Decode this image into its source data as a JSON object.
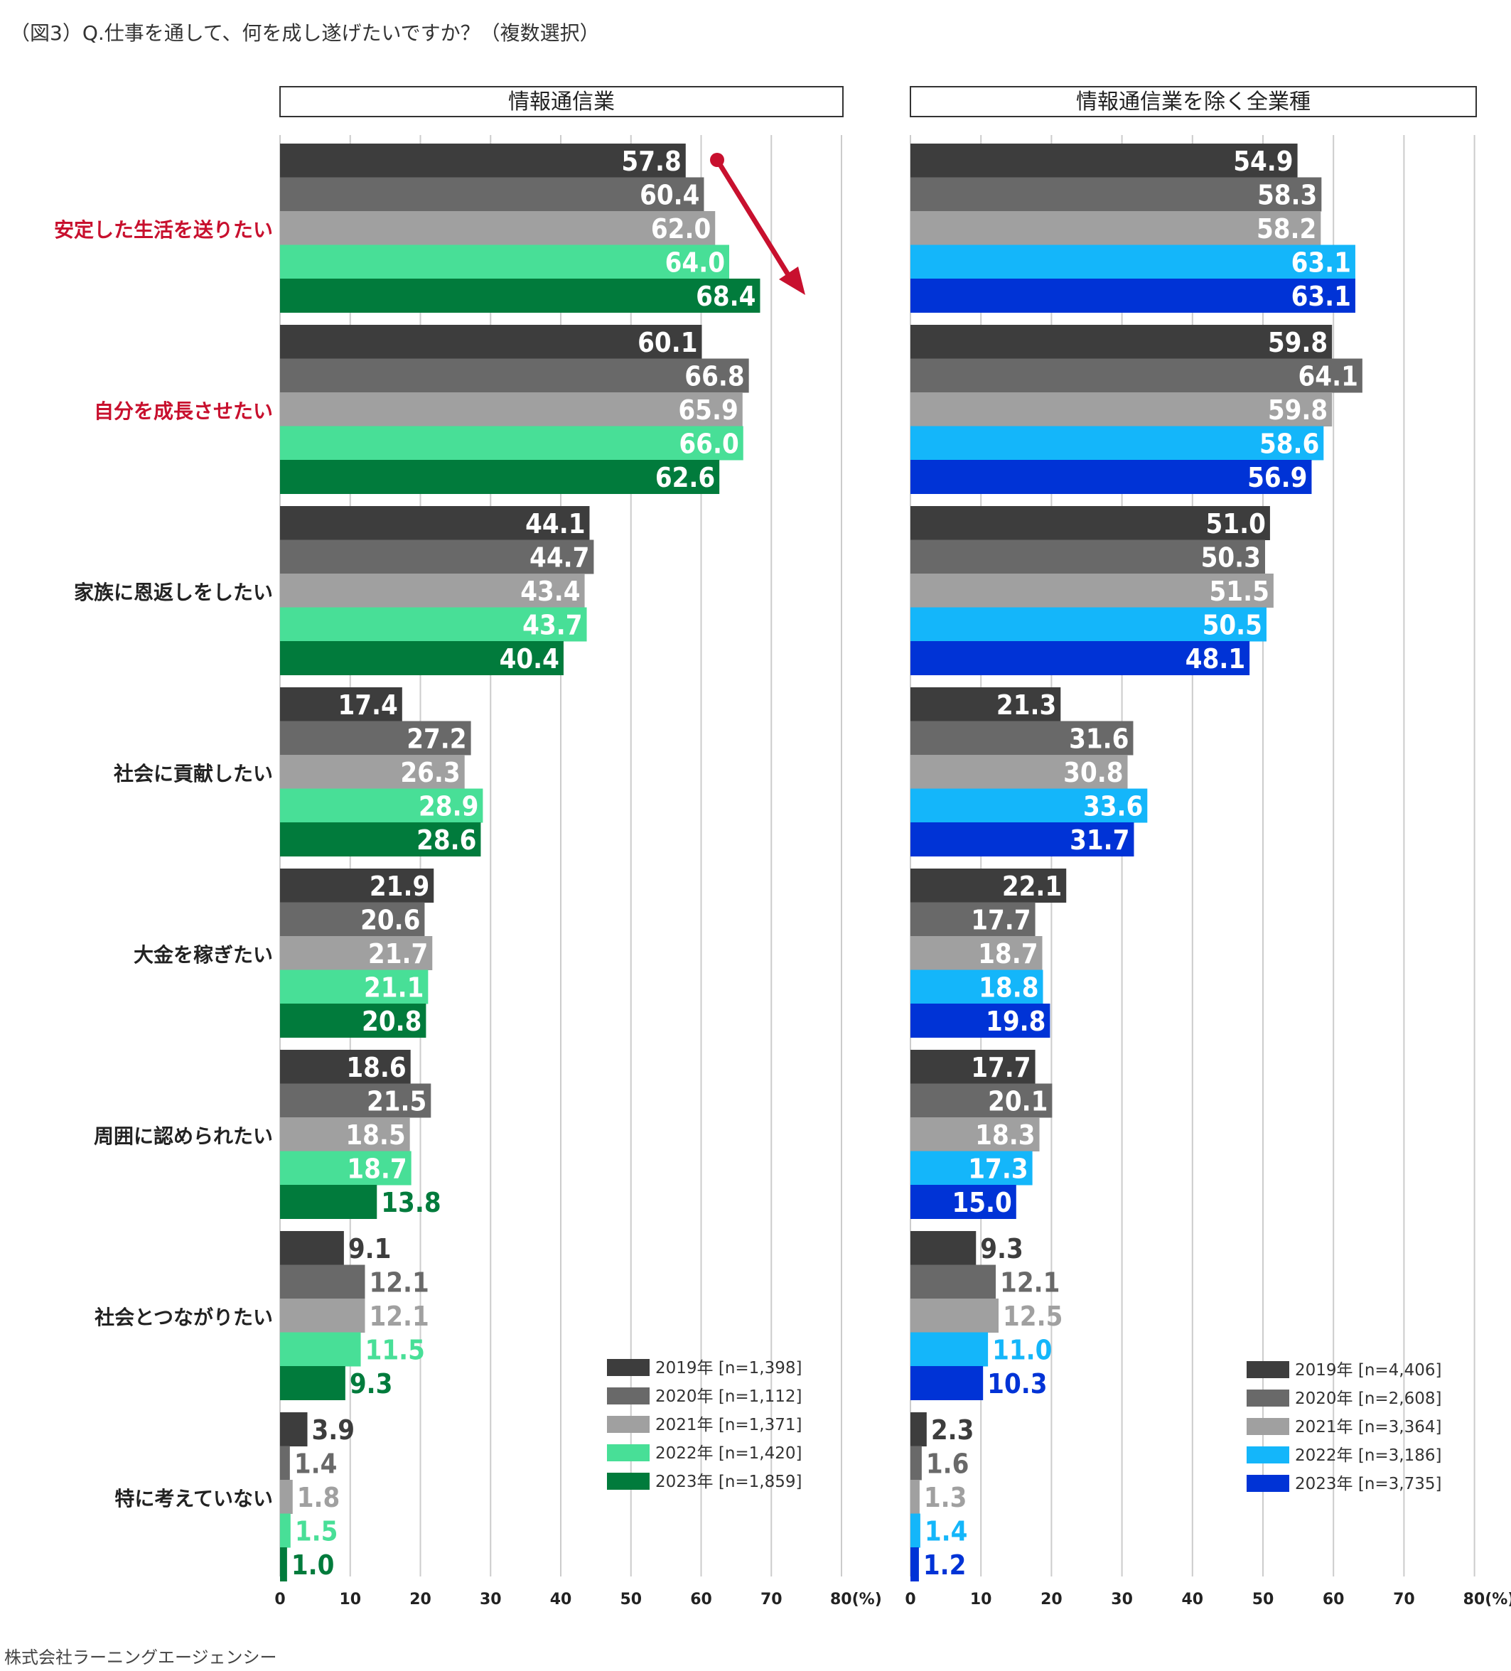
{
  "figure_title": "（図3）Q.仕事を通して、何を成し遂げたいですか？（複数選択）",
  "footer": "株式会社ラーニングエージェンシー",
  "colors": {
    "text": "#222222",
    "highlight": "#c8102e",
    "grid": "#cccccc",
    "arrow": "#c8102e"
  },
  "chart_data": [
    {
      "type": "bar",
      "orientation": "horizontal",
      "title": "情報通信業",
      "categories": [
        "安定した生活を送りたい",
        "自分を成長させたい",
        "家族に恩返しをしたい",
        "社会に貢献したい",
        "大金を稼ぎたい",
        "周囲に認められたい",
        "社会とつながりたい",
        "特に考えていない"
      ],
      "highlight_categories": [
        0,
        1
      ],
      "xlim": [
        0,
        80
      ],
      "ticks": [
        "0",
        "10",
        "20",
        "30",
        "40",
        "50",
        "60",
        "70",
        "80(%)"
      ],
      "grid": true,
      "legend_position": "bottom-right",
      "series": [
        {
          "name": "2019年 [n=1,398]",
          "color": "#3d3d3d",
          "values": [
            57.8,
            60.1,
            44.1,
            17.4,
            21.9,
            18.6,
            9.1,
            3.9
          ]
        },
        {
          "name": "2020年 [n=1,112]",
          "color": "#696969",
          "values": [
            60.4,
            66.8,
            44.7,
            27.2,
            20.6,
            21.5,
            12.1,
            1.4
          ]
        },
        {
          "name": "2021年 [n=1,371]",
          "color": "#a0a0a0",
          "values": [
            62.0,
            65.9,
            43.4,
            26.3,
            21.7,
            18.5,
            12.1,
            1.8
          ]
        },
        {
          "name": "2022年 [n=1,420]",
          "color": "#48df97",
          "values": [
            64.0,
            66.0,
            43.7,
            28.9,
            21.1,
            18.7,
            11.5,
            1.5
          ]
        },
        {
          "name": "2023年 [n=1,859]",
          "color": "#017b3c",
          "values": [
            68.4,
            62.6,
            40.4,
            28.6,
            20.8,
            13.8,
            9.3,
            1.0
          ]
        }
      ]
    },
    {
      "type": "bar",
      "orientation": "horizontal",
      "title": "情報通信業を除く全業種",
      "categories": [
        "安定した生活を送りたい",
        "自分を成長させたい",
        "家族に恩返しをしたい",
        "社会に貢献したい",
        "大金を稼ぎたい",
        "周囲に認められたい",
        "社会とつながりたい",
        "特に考えていない"
      ],
      "xlim": [
        0,
        80
      ],
      "ticks": [
        "0",
        "10",
        "20",
        "30",
        "40",
        "50",
        "60",
        "70",
        "80(%)"
      ],
      "grid": true,
      "legend_position": "bottom-right",
      "series": [
        {
          "name": "2019年 [n=4,406]",
          "color": "#3d3d3d",
          "values": [
            54.9,
            59.8,
            51.0,
            21.3,
            22.1,
            17.7,
            9.3,
            2.3
          ]
        },
        {
          "name": "2020年 [n=2,608]",
          "color": "#696969",
          "values": [
            58.3,
            64.1,
            50.3,
            31.6,
            17.7,
            20.1,
            12.1,
            1.6
          ]
        },
        {
          "name": "2021年 [n=3,364]",
          "color": "#a0a0a0",
          "values": [
            58.2,
            59.8,
            51.5,
            30.8,
            18.7,
            18.3,
            12.5,
            1.3
          ]
        },
        {
          "name": "2022年 [n=3,186]",
          "color": "#14b6fa",
          "values": [
            63.1,
            58.6,
            50.5,
            33.6,
            18.8,
            17.3,
            11.0,
            1.4
          ]
        },
        {
          "name": "2023年 [n=3,735]",
          "color": "#0033d6",
          "values": [
            63.1,
            56.9,
            48.1,
            31.7,
            19.8,
            15.0,
            10.3,
            1.2
          ]
        }
      ]
    }
  ]
}
